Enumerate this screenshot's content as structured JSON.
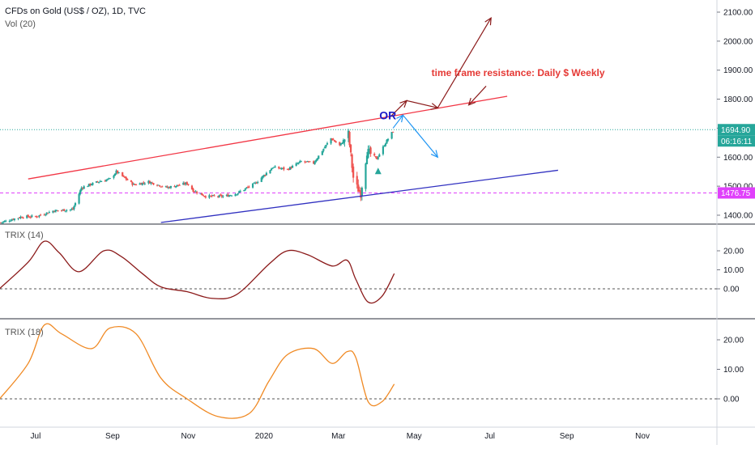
{
  "header": {
    "title": "CFDs on Gold (US$ / OZ), 1D, TVC",
    "volume_label": "Vol (20)"
  },
  "colors": {
    "up": "#26a69a",
    "down": "#ef5350",
    "upper_trendline": "#f23645",
    "lower_trendline": "#3030c0",
    "trix14": "#8b1a1a",
    "trix18": "#f08a24",
    "price_badge": "#26a69a",
    "level_badge": "#e040fb",
    "projection_dark": "#8b1a1a",
    "projection_blue": "#2196f3",
    "or_text": "#1a1ac8",
    "resistance_text": "#e53935"
  },
  "chart_data": [
    {
      "type": "candlestick",
      "title": "CFDs on Gold (US$ / OZ), 1D, TVC",
      "ylim": [
        1350,
        2150
      ],
      "yticks": [
        "2100.00",
        "2000.00",
        "1900.00",
        "1800.00",
        "1700.00",
        "1600.00",
        "1500.00",
        "1400.00"
      ],
      "x_tick_labels": [
        "Jul",
        "Sep",
        "Nov",
        "2020",
        "Mar",
        "May",
        "Jul",
        "Sep",
        "Nov"
      ],
      "x_range": [
        "2019-06-01",
        "2020-12-31"
      ],
      "grid": false,
      "price_path": [
        [
          "2019-06-03",
          1375
        ],
        [
          "2019-06-20",
          1395
        ],
        [
          "2019-07-01",
          1395
        ],
        [
          "2019-07-15",
          1415
        ],
        [
          "2019-07-31",
          1420
        ],
        [
          "2019-08-07",
          1495
        ],
        [
          "2019-08-20",
          1515
        ],
        [
          "2019-08-30",
          1525
        ],
        [
          "2019-09-04",
          1550
        ],
        [
          "2019-09-18",
          1505
        ],
        [
          "2019-09-30",
          1515
        ],
        [
          "2019-10-15",
          1495
        ],
        [
          "2019-10-31",
          1510
        ],
        [
          "2019-11-05",
          1485
        ],
        [
          "2019-11-15",
          1465
        ],
        [
          "2019-11-30",
          1465
        ],
        [
          "2019-12-10",
          1475
        ],
        [
          "2019-12-25",
          1510
        ],
        [
          "2020-01-08",
          1565
        ],
        [
          "2020-01-20",
          1558
        ],
        [
          "2020-01-31",
          1585
        ],
        [
          "2020-02-10",
          1580
        ],
        [
          "2020-02-24",
          1665
        ],
        [
          "2020-03-02",
          1640
        ],
        [
          "2020-03-09",
          1680
        ],
        [
          "2020-03-13",
          1530
        ],
        [
          "2020-03-16",
          1495
        ],
        [
          "2020-03-19",
          1475
        ],
        [
          "2020-03-24",
          1620
        ],
        [
          "2020-04-01",
          1595
        ],
        [
          "2020-04-08",
          1650
        ],
        [
          "2020-04-14",
          1690
        ]
      ],
      "price_labels": {
        "last": "1694.90",
        "countdown": "06:16:11",
        "level": "1476.75"
      },
      "horizontal_levels": [
        {
          "value": 1694.9,
          "style": "dotted",
          "color": "#26a69a"
        },
        {
          "value": 1476.75,
          "style": "dashed",
          "color": "#e040fb"
        }
      ],
      "trendlines": [
        {
          "name": "upper",
          "from": [
            "2019-06-25",
            1525
          ],
          "to": [
            "2020-07-15",
            1810
          ]
        },
        {
          "name": "lower",
          "from": [
            "2019-10-10",
            1375
          ],
          "to": [
            "2020-08-25",
            1555
          ]
        }
      ],
      "projections": [
        {
          "color": "projection_dark",
          "points": [
            [
              "2020-04-12",
              1740
            ],
            [
              "2020-04-25",
              1795
            ],
            [
              "2020-05-20",
              1770
            ],
            [
              "2020-07-02",
              2080
            ]
          ]
        },
        {
          "color": "projection_blue",
          "points": [
            [
              "2020-04-14",
              1700
            ],
            [
              "2020-04-22",
              1745
            ],
            [
              "2020-05-20",
              1600
            ]
          ]
        },
        {
          "color": "projection_dark",
          "points": [
            [
              "2020-06-28",
              1845
            ],
            [
              "2020-06-14",
              1780
            ]
          ]
        }
      ],
      "markers": [
        {
          "shape": "triangle-up",
          "date": "2020-04-02",
          "value": 1550,
          "color": "#26a69a"
        }
      ],
      "annotations": [
        {
          "text": "OR",
          "date": "2020-04-03",
          "value": 1730
        },
        {
          "text": "time frame resistance: Daily $ Weekly",
          "date": "2020-05-15",
          "value": 1880
        }
      ]
    },
    {
      "type": "line",
      "title": "TRIX (14)",
      "ylim": [
        -10,
        35
      ],
      "yticks": [
        "20.00",
        "10.00",
        "0.00"
      ],
      "zero_line": 0,
      "series": [
        {
          "name": "TRIX (14)",
          "points": [
            [
              "2019-06-01",
              -0.5
            ],
            [
              "2019-06-25",
              14
            ],
            [
              "2019-07-08",
              25
            ],
            [
              "2019-07-20",
              19
            ],
            [
              "2019-08-05",
              9
            ],
            [
              "2019-08-25",
              20
            ],
            [
              "2019-09-08",
              17
            ],
            [
              "2019-09-25",
              8
            ],
            [
              "2019-10-10",
              1
            ],
            [
              "2019-10-31",
              -1.5
            ],
            [
              "2019-11-20",
              -5
            ],
            [
              "2019-12-10",
              -3
            ],
            [
              "2020-01-05",
              13
            ],
            [
              "2020-01-20",
              20
            ],
            [
              "2020-02-05",
              18
            ],
            [
              "2020-02-25",
              12
            ],
            [
              "2020-03-08",
              15
            ],
            [
              "2020-03-15",
              5
            ],
            [
              "2020-03-25",
              -7
            ],
            [
              "2020-04-05",
              -4
            ],
            [
              "2020-04-15",
              8
            ]
          ]
        }
      ]
    },
    {
      "type": "line",
      "title": "TRIX (18)",
      "ylim": [
        -10,
        30
      ],
      "yticks": [
        "20.00",
        "10.00",
        "0.00"
      ],
      "zero_line": 0,
      "series": [
        {
          "name": "TRIX (18)",
          "points": [
            [
              "2019-06-01",
              -0.5
            ],
            [
              "2019-06-25",
              12
            ],
            [
              "2019-07-08",
              25
            ],
            [
              "2019-07-22",
              22
            ],
            [
              "2019-08-15",
              17
            ],
            [
              "2019-08-30",
              24
            ],
            [
              "2019-09-20",
              22
            ],
            [
              "2019-10-10",
              7
            ],
            [
              "2019-10-31",
              0
            ],
            [
              "2019-11-25",
              -6
            ],
            [
              "2019-12-20",
              -5
            ],
            [
              "2020-01-05",
              6
            ],
            [
              "2020-01-20",
              15
            ],
            [
              "2020-02-10",
              17
            ],
            [
              "2020-02-25",
              12
            ],
            [
              "2020-03-08",
              16
            ],
            [
              "2020-03-15",
              14
            ],
            [
              "2020-03-25",
              -1
            ],
            [
              "2020-04-05",
              -1
            ],
            [
              "2020-04-15",
              5
            ]
          ]
        }
      ]
    }
  ]
}
